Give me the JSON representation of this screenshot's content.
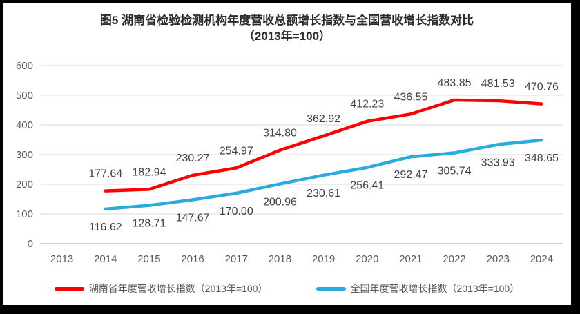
{
  "title": {
    "line1": "图5 湖南省检验检测机构年度营收总额增长指数与全国营收增长指数对比",
    "line2": "（2013年=100）"
  },
  "chart_data": {
    "type": "line",
    "title": "图5 湖南省检验检测机构年度营收总额增长指数与全国营收增长指数对比（2013年=100）",
    "categories": [
      "2013",
      "2014",
      "2015",
      "2016",
      "2017",
      "2018",
      "2019",
      "2020",
      "2021",
      "2022",
      "2023",
      "2024"
    ],
    "series": [
      {
        "name": "湖南省年度营收增长指数（2013年=100）",
        "color": "#FF0000",
        "values": [
          null,
          177.64,
          182.94,
          230.27,
          254.97,
          314.8,
          362.92,
          412.23,
          436.55,
          483.85,
          481.53,
          470.76
        ],
        "labels": [
          "",
          "177.64",
          "182.94",
          "230.27",
          "254.97",
          "314.80",
          "362.92",
          "412.23",
          "436.55",
          "483.85",
          "481.53",
          "470.76"
        ],
        "label_position": "above"
      },
      {
        "name": "全国年度营收增长指数（2013年=100）",
        "color": "#2BAAE2",
        "values": [
          null,
          116.62,
          128.71,
          147.67,
          170.0,
          200.96,
          230.61,
          256.41,
          292.47,
          305.74,
          333.93,
          348.65
        ],
        "labels": [
          "",
          "116.62",
          "128.71",
          "147.67",
          "170.00",
          "200.96",
          "230.61",
          "256.41",
          "292.47",
          "305.74",
          "333.93",
          "348.65"
        ],
        "label_position": "below"
      }
    ],
    "ylim": [
      0,
      600
    ],
    "ytick_step": 100,
    "yticks": [
      "0",
      "100",
      "200",
      "300",
      "400",
      "500",
      "600"
    ],
    "xlabel": "",
    "ylabel": "",
    "grid": true,
    "legend_position": "bottom",
    "colors": {
      "gridline": "#D9D9D9",
      "axis_line": "#A6A6A6",
      "tick_label": "#595959",
      "data_label": "#404040",
      "background": "#FFFFFF",
      "frame_border": "#000000"
    }
  },
  "legend": {
    "items": [
      {
        "label": "湖南省年度营收增长指数（2013年=100）",
        "color": "#FF0000"
      },
      {
        "label": "全国年度营收增长指数（2013年=100）",
        "color": "#2BAAE2"
      }
    ]
  }
}
